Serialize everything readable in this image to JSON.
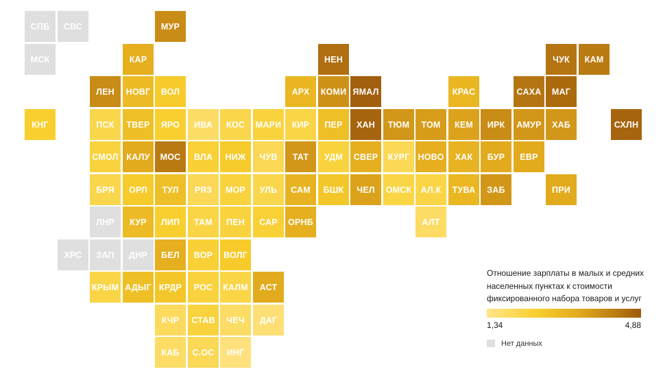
{
  "map": {
    "tiles": [
      {
        "label": "СПБ",
        "row": 0,
        "col": 0,
        "value": null
      },
      {
        "label": "СВС",
        "row": 0,
        "col": 1,
        "value": null
      },
      {
        "label": "МУР",
        "row": 0,
        "col": 4,
        "value": 4.0
      },
      {
        "label": "МСК",
        "row": 1,
        "col": 0,
        "value": null
      },
      {
        "label": "КАР",
        "row": 1,
        "col": 3,
        "value": 3.3
      },
      {
        "label": "НЕН",
        "row": 1,
        "col": 9,
        "value": 4.5
      },
      {
        "label": "ЧУК",
        "row": 1,
        "col": 16,
        "value": 4.4
      },
      {
        "label": "КАМ",
        "row": 1,
        "col": 17,
        "value": 4.3
      },
      {
        "label": "ЛЕН",
        "row": 2,
        "col": 2,
        "value": 4.0
      },
      {
        "label": "НОВГ",
        "row": 2,
        "col": 3,
        "value": 3.0
      },
      {
        "label": "ВОЛ",
        "row": 2,
        "col": 4,
        "value": 2.6
      },
      {
        "label": "АРХ",
        "row": 2,
        "col": 8,
        "value": 3.1
      },
      {
        "label": "КОМИ",
        "row": 2,
        "col": 9,
        "value": 3.9
      },
      {
        "label": "ЯМАЛ",
        "row": 2,
        "col": 10,
        "value": 4.8
      },
      {
        "label": "КРАС",
        "row": 2,
        "col": 13,
        "value": 3.1
      },
      {
        "label": "САХА",
        "row": 2,
        "col": 15,
        "value": 4.4
      },
      {
        "label": "МАГ",
        "row": 2,
        "col": 16,
        "value": 4.6
      },
      {
        "label": "КНГ",
        "row": 3,
        "col": 0,
        "value": 2.5
      },
      {
        "label": "ПСК",
        "row": 3,
        "col": 2,
        "value": 2.1
      },
      {
        "label": "ТВЕР",
        "row": 3,
        "col": 3,
        "value": 2.9
      },
      {
        "label": "ЯРО",
        "row": 3,
        "col": 4,
        "value": 2.5
      },
      {
        "label": "ИВА",
        "row": 3,
        "col": 5,
        "value": 1.8
      },
      {
        "label": "КОС",
        "row": 3,
        "col": 6,
        "value": 2.1
      },
      {
        "label": "МАРИ",
        "row": 3,
        "col": 7,
        "value": 2.3
      },
      {
        "label": "КИР",
        "row": 3,
        "col": 8,
        "value": 2.2
      },
      {
        "label": "ПЕР",
        "row": 3,
        "col": 9,
        "value": 2.9
      },
      {
        "label": "ХАН",
        "row": 3,
        "col": 10,
        "value": 4.7
      },
      {
        "label": "ТЮМ",
        "row": 3,
        "col": 11,
        "value": 3.8
      },
      {
        "label": "ТОМ",
        "row": 3,
        "col": 12,
        "value": 3.7
      },
      {
        "label": "КЕМ",
        "row": 3,
        "col": 13,
        "value": 3.6
      },
      {
        "label": "ИРК",
        "row": 3,
        "col": 14,
        "value": 4.0
      },
      {
        "label": "АМУР",
        "row": 3,
        "col": 15,
        "value": 3.8
      },
      {
        "label": "ХАБ",
        "row": 3,
        "col": 16,
        "value": 3.8
      },
      {
        "label": "СХЛН",
        "row": 3,
        "col": 18,
        "value": 4.7
      },
      {
        "label": "СМОЛ",
        "row": 4,
        "col": 2,
        "value": 2.3
      },
      {
        "label": "КАЛУ",
        "row": 4,
        "col": 3,
        "value": 3.4
      },
      {
        "label": "МОС",
        "row": 4,
        "col": 4,
        "value": 4.3
      },
      {
        "label": "ВЛА",
        "row": 4,
        "col": 5,
        "value": 2.4
      },
      {
        "label": "НИЖ",
        "row": 4,
        "col": 6,
        "value": 2.6
      },
      {
        "label": "ЧУВ",
        "row": 4,
        "col": 7,
        "value": 2.0
      },
      {
        "label": "ТАТ",
        "row": 4,
        "col": 8,
        "value": 3.8
      },
      {
        "label": "УДМ",
        "row": 4,
        "col": 9,
        "value": 2.3
      },
      {
        "label": "СВЕР",
        "row": 4,
        "col": 10,
        "value": 3.3
      },
      {
        "label": "КУРГ",
        "row": 4,
        "col": 11,
        "value": 2.0
      },
      {
        "label": "НОВО",
        "row": 4,
        "col": 12,
        "value": 3.3
      },
      {
        "label": "ХАК",
        "row": 4,
        "col": 13,
        "value": 3.2
      },
      {
        "label": "БУР",
        "row": 4,
        "col": 14,
        "value": 3.4
      },
      {
        "label": "ЕВР",
        "row": 4,
        "col": 15,
        "value": 3.4
      },
      {
        "label": "БРЯ",
        "row": 5,
        "col": 2,
        "value": 2.1
      },
      {
        "label": "ОРЛ",
        "row": 5,
        "col": 3,
        "value": 2.6
      },
      {
        "label": "ТУЛ",
        "row": 5,
        "col": 4,
        "value": 2.9
      },
      {
        "label": "РЯЗ",
        "row": 5,
        "col": 5,
        "value": 2.0
      },
      {
        "label": "МОР",
        "row": 5,
        "col": 6,
        "value": 2.3
      },
      {
        "label": "УЛЬ",
        "row": 5,
        "col": 7,
        "value": 2.1
      },
      {
        "label": "САМ",
        "row": 5,
        "col": 8,
        "value": 3.2
      },
      {
        "label": "БШК",
        "row": 5,
        "col": 9,
        "value": 2.7
      },
      {
        "label": "ЧЕЛ",
        "row": 5,
        "col": 10,
        "value": 3.6
      },
      {
        "label": "ОМСК",
        "row": 5,
        "col": 11,
        "value": 2.2
      },
      {
        "label": "АЛ.К",
        "row": 5,
        "col": 12,
        "value": 2.2
      },
      {
        "label": "ТУВА",
        "row": 5,
        "col": 13,
        "value": 3.1
      },
      {
        "label": "ЗАБ",
        "row": 5,
        "col": 14,
        "value": 3.8
      },
      {
        "label": "ПРИ",
        "row": 5,
        "col": 16,
        "value": 3.4
      },
      {
        "label": "ЛНР",
        "row": 6,
        "col": 2,
        "value": null
      },
      {
        "label": "КУР",
        "row": 6,
        "col": 3,
        "value": 3.0
      },
      {
        "label": "ЛИП",
        "row": 6,
        "col": 4,
        "value": 2.5
      },
      {
        "label": "ТАМ",
        "row": 6,
        "col": 5,
        "value": 2.2
      },
      {
        "label": "ПЕН",
        "row": 6,
        "col": 6,
        "value": 2.3
      },
      {
        "label": "САР",
        "row": 6,
        "col": 7,
        "value": 2.4
      },
      {
        "label": "ОРНБ",
        "row": 6,
        "col": 8,
        "value": 3.3
      },
      {
        "label": "АЛТ",
        "row": 6,
        "col": 12,
        "value": 1.8
      },
      {
        "label": "ХРС",
        "row": 7,
        "col": 1,
        "value": null
      },
      {
        "label": "ЗАП",
        "row": 7,
        "col": 2,
        "value": null
      },
      {
        "label": "ДНР",
        "row": 7,
        "col": 3,
        "value": null
      },
      {
        "label": "БЕЛ",
        "row": 7,
        "col": 4,
        "value": 3.3
      },
      {
        "label": "ВОР",
        "row": 7,
        "col": 5,
        "value": 2.4
      },
      {
        "label": "ВОЛГ",
        "row": 7,
        "col": 6,
        "value": 2.6
      },
      {
        "label": "КРЫМ",
        "row": 8,
        "col": 2,
        "value": 2.2
      },
      {
        "label": "АДЫГ",
        "row": 8,
        "col": 3,
        "value": 2.9
      },
      {
        "label": "КРДР",
        "row": 8,
        "col": 4,
        "value": 2.7
      },
      {
        "label": "РОС",
        "row": 8,
        "col": 5,
        "value": 2.3
      },
      {
        "label": "КАЛМ",
        "row": 8,
        "col": 6,
        "value": 2.2
      },
      {
        "label": "АСТ",
        "row": 8,
        "col": 7,
        "value": 3.4
      },
      {
        "label": "КЧР",
        "row": 9,
        "col": 4,
        "value": 1.9
      },
      {
        "label": "СТАВ",
        "row": 9,
        "col": 5,
        "value": 2.3
      },
      {
        "label": "ЧЕЧ",
        "row": 9,
        "col": 6,
        "value": 1.8
      },
      {
        "label": "ДАГ",
        "row": 9,
        "col": 7,
        "value": 1.6
      },
      {
        "label": "КАБ",
        "row": 10,
        "col": 4,
        "value": 1.8
      },
      {
        "label": "С.ОС",
        "row": 10,
        "col": 5,
        "value": 2.0
      },
      {
        "label": "ИНГ",
        "row": 10,
        "col": 6,
        "value": 1.5
      }
    ]
  },
  "legend": {
    "title": "Отношение зарплаты в малых и средних населенных пунктах к стоимости фиксированного набора товаров и услуг",
    "min_label": "1,34",
    "max_label": "4,88",
    "min_value": 1.34,
    "max_value": 4.88,
    "no_data_label": "Нет данных",
    "colors": {
      "low": "#ffe48a",
      "mid_low": "#f8cf2d",
      "mid_high": "#dfa61c",
      "high": "#9e5a0c",
      "no_data": "#dfdfdf"
    }
  }
}
